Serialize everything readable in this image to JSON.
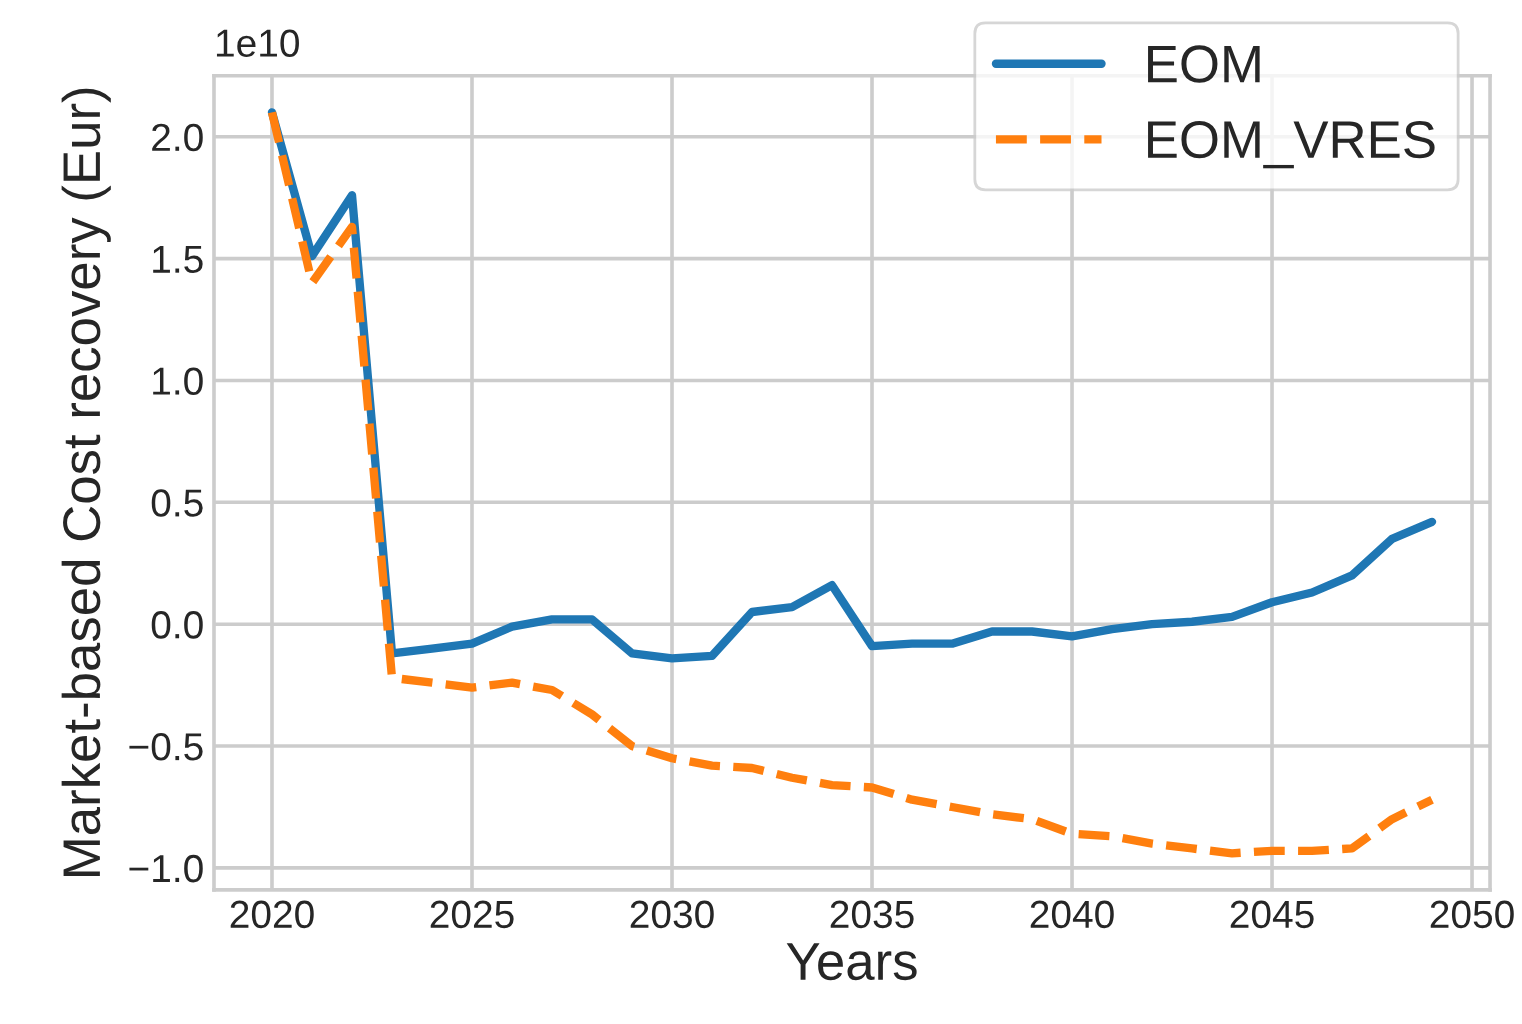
{
  "chart_data": {
    "type": "line",
    "xlabel": "Years",
    "ylabel": "Market-based Cost recovery (Eur)",
    "annotations": [
      "1e10"
    ],
    "x": [
      2020,
      2021,
      2022,
      2023,
      2024,
      2025,
      2026,
      2027,
      2028,
      2029,
      2030,
      2031,
      2032,
      2033,
      2034,
      2035,
      2036,
      2037,
      2038,
      2039,
      2040,
      2041,
      2042,
      2043,
      2044,
      2045,
      2046,
      2047,
      2048,
      2049
    ],
    "series": [
      {
        "name": "EOM",
        "color": "#1f77b4",
        "line_style": "solid",
        "values": [
          2.1,
          1.51,
          1.76,
          -0.12,
          -0.1,
          -0.08,
          -0.01,
          0.02,
          0.02,
          -0.12,
          -0.14,
          -0.13,
          0.05,
          0.07,
          0.16,
          -0.09,
          -0.08,
          -0.08,
          -0.03,
          -0.03,
          -0.05,
          -0.02,
          0.0,
          0.01,
          0.03,
          0.09,
          0.13,
          0.2,
          0.35,
          0.42
        ]
      },
      {
        "name": "EOM_VRES",
        "color": "#ff7f0e",
        "line_style": "dashed",
        "values": [
          2.1,
          1.4,
          1.63,
          -0.22,
          -0.24,
          -0.26,
          -0.24,
          -0.27,
          -0.37,
          -0.5,
          -0.55,
          -0.58,
          -0.59,
          -0.63,
          -0.66,
          -0.67,
          -0.72,
          -0.75,
          -0.78,
          -0.8,
          -0.86,
          -0.87,
          -0.9,
          -0.92,
          -0.94,
          -0.93,
          -0.93,
          -0.92,
          -0.8,
          -0.72
        ]
      }
    ],
    "xlim": [
      2018.55,
      2050.45
    ],
    "xticks": [
      2020,
      2025,
      2030,
      2035,
      2040,
      2045,
      2050
    ],
    "ylim": [
      -1.09,
      2.25
    ],
    "yticks": [
      {
        "value": -1.0,
        "label": "−1.0"
      },
      {
        "value": -0.5,
        "label": "−0.5"
      },
      {
        "value": 0.0,
        "label": "0.0"
      },
      {
        "value": 0.5,
        "label": "0.5"
      },
      {
        "value": 1.0,
        "label": "1.0"
      },
      {
        "value": 1.5,
        "label": "1.5"
      },
      {
        "value": 2.0,
        "label": "2.0"
      }
    ],
    "grid": true,
    "legend": "top right"
  }
}
